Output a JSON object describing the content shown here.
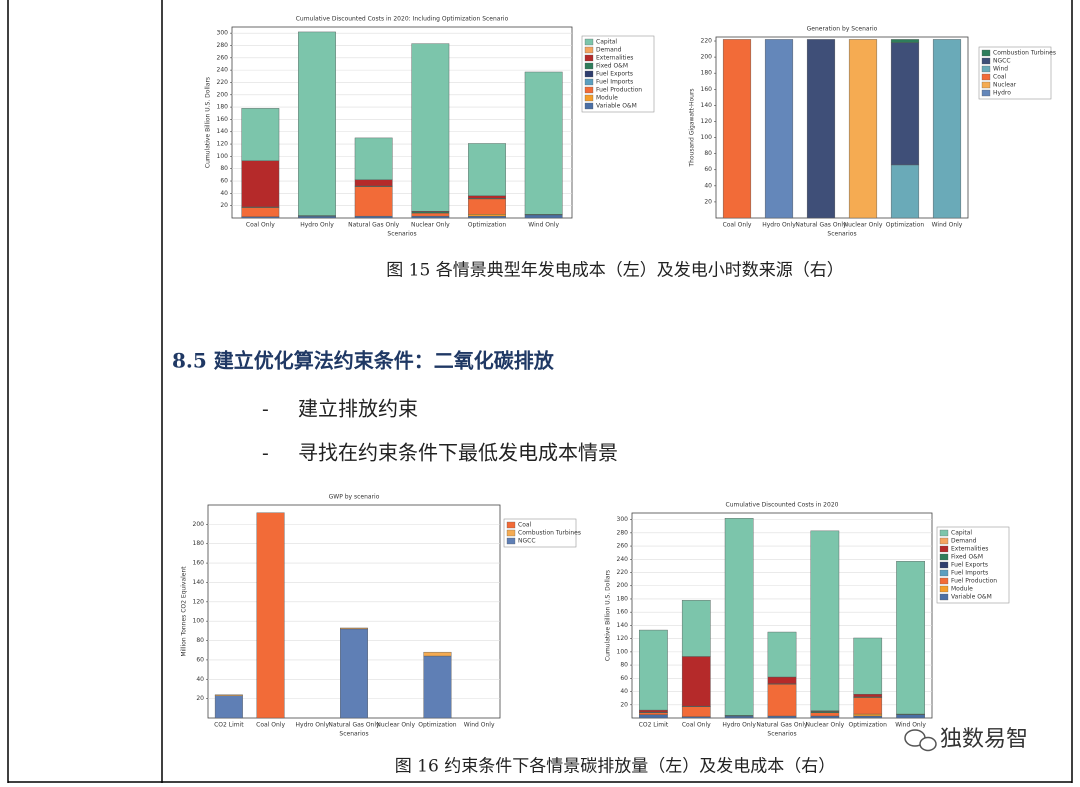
{
  "document": {
    "caption_1": "图 15 各情景典型年发电成本（左）及发电小时数来源（右）",
    "heading": "8.5 建立优化算法约束条件：二氧化碳排放",
    "bullets": [
      {
        "marker": "-",
        "text": "建立排放约束"
      },
      {
        "marker": "-",
        "text": "寻找在约束条件下最低发电成本情景"
      }
    ],
    "caption_2": "图 16 约束条件下各情景碳排放量（左）及发电成本（右）",
    "watermark": "独数易智"
  },
  "chart_data": [
    {
      "type": "stacked-bar",
      "title": "Cumulative Discounted Costs in 2020: Including Optimization Scenario",
      "y_label": "Cumulative Billion U.S. Dollars",
      "x_label": "Scenarios",
      "categories": [
        "Coal Only",
        "Hydro Only",
        "Natural Gas Only",
        "Nuclear Only",
        "Optimization",
        "Wind Only"
      ],
      "ylim": [
        0,
        310
      ],
      "yticks": [
        20,
        40,
        60,
        80,
        100,
        120,
        140,
        160,
        180,
        200,
        220,
        240,
        260,
        280,
        300
      ],
      "grid": true,
      "series": [
        {
          "name": "Capital",
          "color": "#7cc5ab",
          "values": [
            85,
            298,
            68,
            272,
            85,
            231
          ]
        },
        {
          "name": "Demand",
          "color": "#f4a460",
          "values": [
            0,
            0,
            0,
            0,
            0,
            0
          ]
        },
        {
          "name": "Externalities",
          "color": "#b52a2a",
          "values": [
            75,
            0,
            10,
            1,
            4,
            0
          ]
        },
        {
          "name": "Fixed O&M",
          "color": "#2e7d5b",
          "values": [
            1,
            1,
            1,
            2,
            1,
            1
          ]
        },
        {
          "name": "Fuel Exports",
          "color": "#2f3e6e",
          "values": [
            0,
            0,
            0,
            0,
            0,
            0
          ]
        },
        {
          "name": "Fuel Imports",
          "color": "#5b9fc0",
          "values": [
            0,
            0,
            0,
            0,
            0,
            0
          ]
        },
        {
          "name": "Fuel Production",
          "color": "#f26b38",
          "values": [
            15,
            0,
            48,
            5,
            25,
            0
          ]
        },
        {
          "name": "Module",
          "color": "#f59e2a",
          "values": [
            0,
            0,
            0,
            0,
            3,
            0
          ]
        },
        {
          "name": "Variable O&M",
          "color": "#4a6fa5",
          "values": [
            2,
            3,
            3,
            3,
            3,
            5
          ]
        }
      ]
    },
    {
      "type": "stacked-bar",
      "title": "Generation by Scenario",
      "y_label": "Thousand Gigawatt-Hours",
      "x_label": "Scenarios",
      "categories": [
        "Coal Only",
        "Hydro Only",
        "Natural Gas Only",
        "Nuclear Only",
        "Optimization",
        "Wind Only"
      ],
      "ylim": [
        0,
        225
      ],
      "yticks": [
        20,
        40,
        60,
        80,
        100,
        120,
        140,
        160,
        180,
        200,
        220
      ],
      "grid": false,
      "series": [
        {
          "name": "Combustion Turbines",
          "color": "#2e7d5b",
          "values": [
            0,
            0,
            0,
            0,
            4,
            0
          ]
        },
        {
          "name": "NGCC",
          "color": "#3f4f78",
          "values": [
            0,
            0,
            222,
            0,
            152,
            0
          ]
        },
        {
          "name": "Wind",
          "color": "#6aaab8",
          "values": [
            0,
            0,
            0,
            0,
            66,
            222
          ]
        },
        {
          "name": "Coal",
          "color": "#f26b38",
          "values": [
            222,
            0,
            0,
            0,
            0,
            0
          ]
        },
        {
          "name": "Nuclear",
          "color": "#f5ab52",
          "values": [
            0,
            0,
            0,
            222,
            0,
            0
          ]
        },
        {
          "name": "Hydro",
          "color": "#6487ba",
          "values": [
            0,
            222,
            0,
            0,
            0,
            0
          ]
        }
      ]
    },
    {
      "type": "stacked-bar",
      "title": "GWP by scenario",
      "y_label": "Million Tonnes CO2 Equivalent",
      "x_label": "Scenarios",
      "categories": [
        "CO2 Limit",
        "Coal Only",
        "Hydro Only",
        "Natural Gas Only",
        "Nuclear Only",
        "Optimization",
        "Wind Only"
      ],
      "ylim": [
        0,
        220
      ],
      "yticks": [
        20,
        40,
        60,
        80,
        100,
        120,
        140,
        160,
        180,
        200
      ],
      "grid": true,
      "series": [
        {
          "name": "Coal",
          "color": "#f26b38",
          "values": [
            0,
            212,
            0,
            0,
            0,
            0,
            0
          ]
        },
        {
          "name": "Combustion Turbines",
          "color": "#f5ab52",
          "values": [
            1,
            0,
            0,
            1,
            0,
            4,
            0
          ]
        },
        {
          "name": "NGCC",
          "color": "#5f7fb5",
          "values": [
            23,
            0,
            0,
            92,
            0,
            64,
            0
          ]
        }
      ]
    },
    {
      "type": "stacked-bar",
      "title": "Cumulative Discounted Costs in 2020",
      "y_label": "Cumulative Billion U.S. Dollars",
      "x_label": "Scenarios",
      "categories": [
        "CO2 Limit",
        "Coal Only",
        "Hydro Only",
        "Natural Gas Only",
        "Nuclear Only",
        "Optimization",
        "Wind Only"
      ],
      "ylim": [
        0,
        310
      ],
      "yticks": [
        20,
        40,
        60,
        80,
        100,
        120,
        140,
        160,
        180,
        200,
        220,
        240,
        260,
        280,
        300
      ],
      "grid": true,
      "series": [
        {
          "name": "Capital",
          "color": "#7cc5ab",
          "values": [
            121,
            85,
            298,
            68,
            272,
            85,
            231
          ]
        },
        {
          "name": "Demand",
          "color": "#f4a460",
          "values": [
            0,
            0,
            0,
            0,
            0,
            0,
            0
          ]
        },
        {
          "name": "Externalities",
          "color": "#b52a2a",
          "values": [
            3,
            75,
            0,
            10,
            1,
            4,
            0
          ]
        },
        {
          "name": "Fixed O&M",
          "color": "#2e7d5b",
          "values": [
            1,
            1,
            1,
            1,
            2,
            1,
            1
          ]
        },
        {
          "name": "Fuel Exports",
          "color": "#2f3e6e",
          "values": [
            0,
            0,
            0,
            0,
            0,
            0,
            0
          ]
        },
        {
          "name": "Fuel Imports",
          "color": "#5b9fc0",
          "values": [
            0,
            0,
            0,
            0,
            0,
            0,
            0
          ]
        },
        {
          "name": "Fuel Production",
          "color": "#f26b38",
          "values": [
            3,
            15,
            0,
            48,
            5,
            25,
            0
          ]
        },
        {
          "name": "Module",
          "color": "#f59e2a",
          "values": [
            0,
            0,
            0,
            0,
            0,
            3,
            0
          ]
        },
        {
          "name": "Variable O&M",
          "color": "#4a6fa5",
          "values": [
            5,
            2,
            3,
            3,
            3,
            3,
            5
          ]
        }
      ]
    }
  ]
}
